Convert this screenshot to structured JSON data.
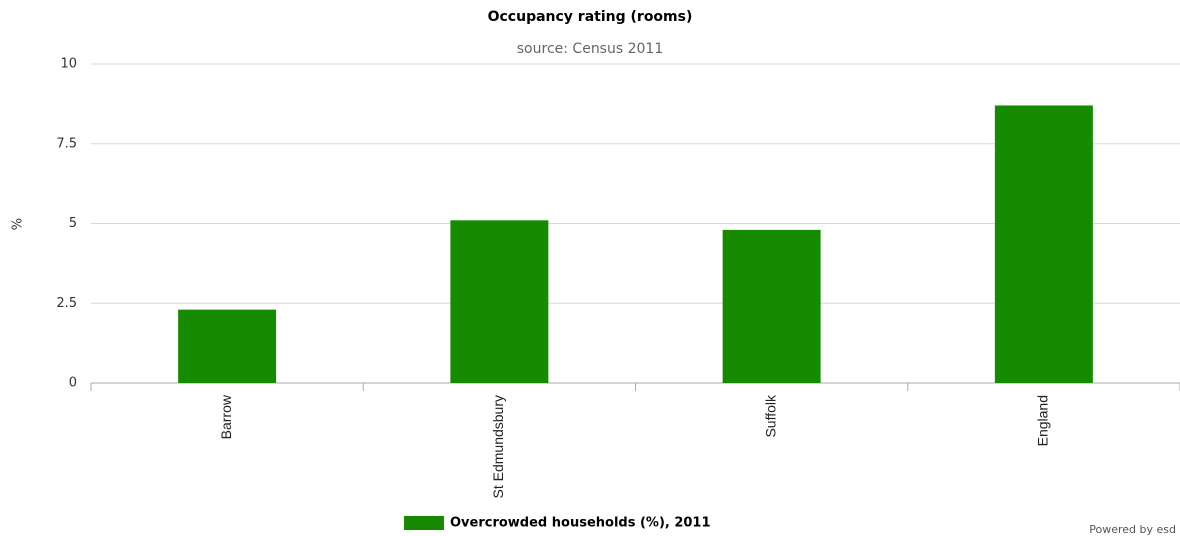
{
  "chart_data": {
    "type": "bar",
    "title": "Occupancy rating (rooms)",
    "subtitle": "source: Census 2011",
    "y_label": "%",
    "categories": [
      "Barrow",
      "St Edmundsbury",
      "Suffolk",
      "England"
    ],
    "series": [
      {
        "name": "Overcrowded households (%), 2011",
        "color": "#168a00",
        "values": [
          2.3,
          5.1,
          4.8,
          8.7
        ]
      }
    ],
    "ylim": [
      0,
      10
    ],
    "yticks": [
      0,
      2.5,
      5,
      7.5,
      10
    ],
    "grid": true,
    "legend": "bottom",
    "credit": "Powered by esd"
  }
}
